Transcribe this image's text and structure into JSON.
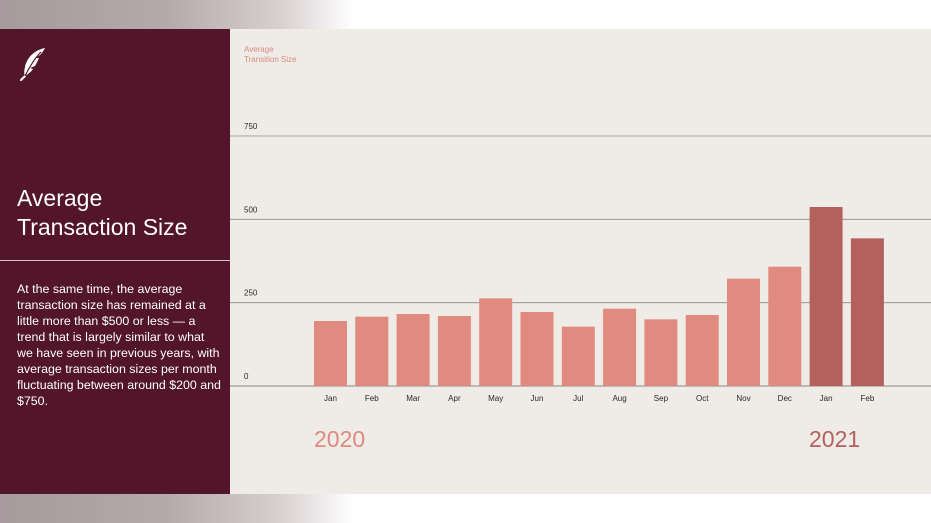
{
  "sidebar": {
    "logo": "feather-icon",
    "title_line1": "Average",
    "title_line2": "Transaction Size",
    "description": "At the same time, the average transaction size has remained at a little more than $500 or less — a trend that is largely similar to what we have seen in previous years, with average transaction sizes per month fluctuating between around $200 and $750."
  },
  "chart_data": {
    "type": "bar",
    "ylabel_line1": "Average",
    "ylabel_line2": "Transition Size",
    "ylim": [
      0,
      750
    ],
    "yticks": [
      "0",
      "250",
      "500",
      "750"
    ],
    "grid": true,
    "categories": [
      "Jan",
      "Feb",
      "Mar",
      "Apr",
      "May",
      "Jun",
      "Jul",
      "Aug",
      "Sep",
      "Oct",
      "Nov",
      "Dec",
      "Jan",
      "Feb"
    ],
    "values": [
      195,
      208,
      216,
      210,
      263,
      222,
      178,
      232,
      200,
      213,
      322,
      358,
      537,
      443
    ],
    "year_labels": [
      "2020",
      "2021"
    ],
    "colors": {
      "2020": "#e08a80",
      "2021": "#b4605c",
      "year_2020_text": "#e08a80",
      "year_2021_text": "#b4605c",
      "axis_label": "#d98a80"
    },
    "bar_years": [
      "2020",
      "2020",
      "2020",
      "2020",
      "2020",
      "2020",
      "2020",
      "2020",
      "2020",
      "2020",
      "2020",
      "2020",
      "2021",
      "2021"
    ]
  }
}
